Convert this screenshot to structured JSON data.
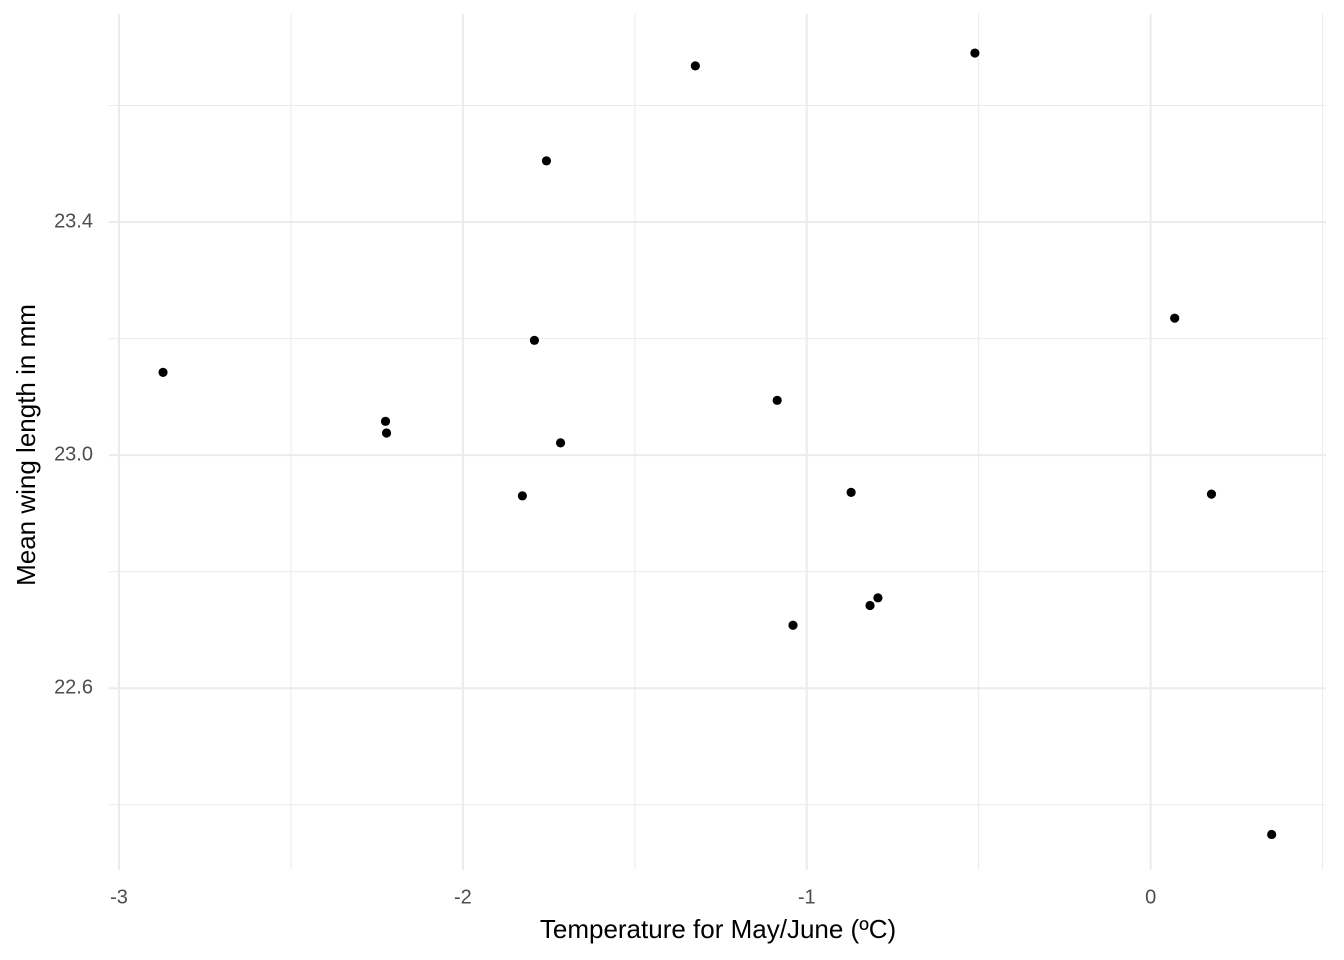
{
  "chart_data": {
    "type": "scatter",
    "x_label": "Temperature for May/June (ºC)",
    "y_label": "Mean wing length in mm",
    "color": "#000000",
    "grid": true,
    "x": [
      -2.872,
      -2.225,
      -2.222,
      -1.827,
      -1.792,
      -1.757,
      -1.716,
      -1.324,
      -1.086,
      -1.04,
      -0.871,
      -0.816,
      -0.793,
      -0.511,
      0.07,
      0.177,
      0.352
    ],
    "values": [
      23.142,
      23.058,
      23.038,
      22.93,
      23.197,
      23.505,
      23.021,
      23.668,
      23.094,
      22.708,
      22.936,
      22.742,
      22.755,
      23.69,
      23.235,
      22.933,
      22.349
    ],
    "xlim": [
      -3.03,
      0.51
    ],
    "ylim": [
      22.288,
      23.757
    ],
    "xticks": [
      -3,
      -2,
      -1,
      0
    ],
    "yticks": [
      22.6,
      {
        "value": 23,
        "label": "23.0"
      },
      23.4
    ]
  }
}
